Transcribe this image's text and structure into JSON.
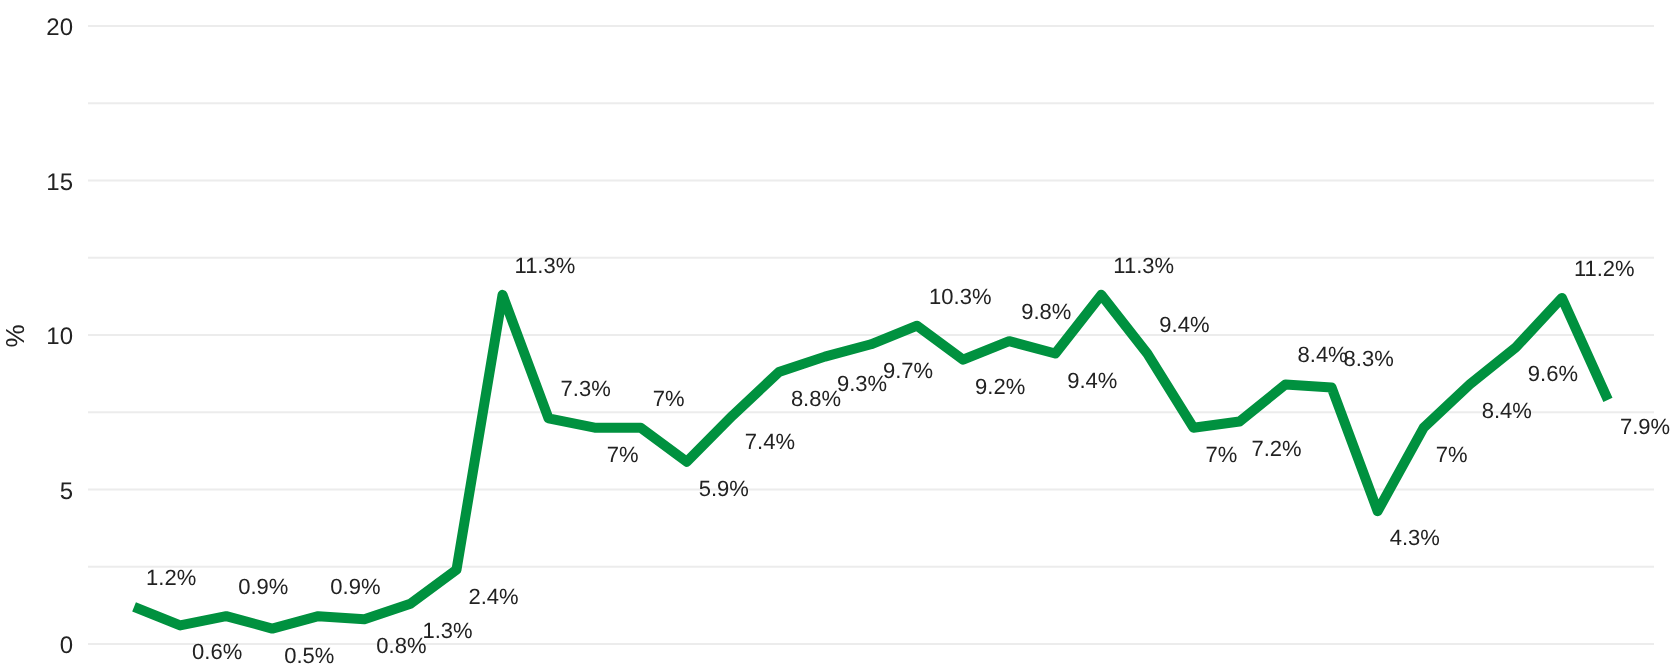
{
  "chart_data": {
    "type": "line",
    "ylabel": "%",
    "categories": [
      null,
      null,
      null,
      null,
      null,
      null,
      null,
      null,
      null,
      null,
      null,
      null,
      null,
      null,
      null,
      null,
      null,
      null,
      null,
      null,
      null,
      null,
      null,
      null,
      null,
      null,
      null,
      null,
      null,
      null,
      null,
      null,
      null
    ],
    "series": [
      {
        "color": "#00913f",
        "values": [
          1.2,
          0.6,
          0.9,
          0.5,
          0.9,
          0.8,
          1.3,
          2.4,
          11.3,
          7.3,
          7.0,
          7.0,
          5.9,
          7.4,
          8.8,
          9.3,
          9.7,
          10.3,
          9.2,
          9.8,
          9.4,
          11.3,
          9.4,
          7.0,
          7.2,
          8.4,
          8.3,
          4.3,
          7.0,
          8.4,
          9.6,
          11.2,
          7.9
        ],
        "value_labels": [
          "1.2%",
          "0.6%",
          "0.9%",
          "0.5%",
          "0.9%",
          "0.8%",
          "1.3%",
          "2.4%",
          "11.3%",
          "7.3%",
          "7%",
          "7%",
          "5.9%",
          "7.4%",
          "8.8%",
          "9.3%",
          "9.7%",
          "10.3%",
          "9.2%",
          "9.8%",
          "9.4%",
          "11.3%",
          "9.4%",
          "7%",
          "7.2%",
          "8.4%",
          "8.3%",
          "4.3%",
          "7%",
          "8.4%",
          "9.6%",
          "11.2%",
          "7.9%"
        ]
      }
    ],
    "ylim": [
      0,
      20
    ],
    "yticks": [
      0,
      {
        "value": 2.5,
        "label": null
      },
      5,
      {
        "value": 7.5,
        "label": null
      },
      10,
      {
        "value": 12.5,
        "label": null
      },
      15,
      {
        "value": 17.5,
        "label": null
      },
      20
    ],
    "grid": "y",
    "tick_labels": "y",
    "marker": "none",
    "line_style": "solid"
  }
}
